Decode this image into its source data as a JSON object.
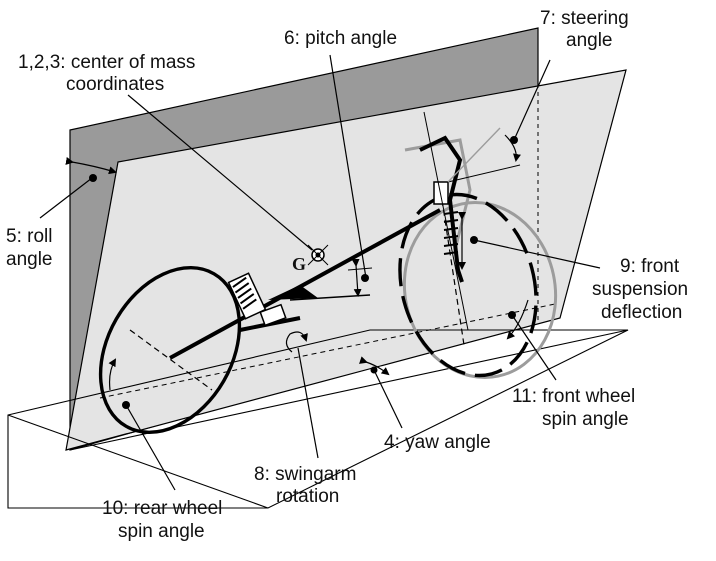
{
  "labels": {
    "com_line1": "1,2,3: center of mass",
    "com_line2": "coordinates",
    "pitch": "6: pitch angle",
    "steer_line1": "7: steering",
    "steer_line2": "angle",
    "roll_line1": "5: roll",
    "roll_line2": "angle",
    "susp_line1": "9: front",
    "susp_line2": "suspension",
    "susp_line3": "deflection",
    "fwspin_line1": "11: front wheel",
    "fwspin_line2": "spin angle",
    "yaw": "4: yaw angle",
    "swing_line1": "8: swingarm",
    "swing_line2": "rotation",
    "rwspin_line1": "10: rear wheel",
    "rwspin_line2": "spin angle",
    "g_symbol": "G"
  },
  "colors": {
    "back_plane": "#9a9a9a",
    "vertical_plane": "#e4e4e4",
    "line": "#000000",
    "ghost": "#9c9c9c"
  }
}
